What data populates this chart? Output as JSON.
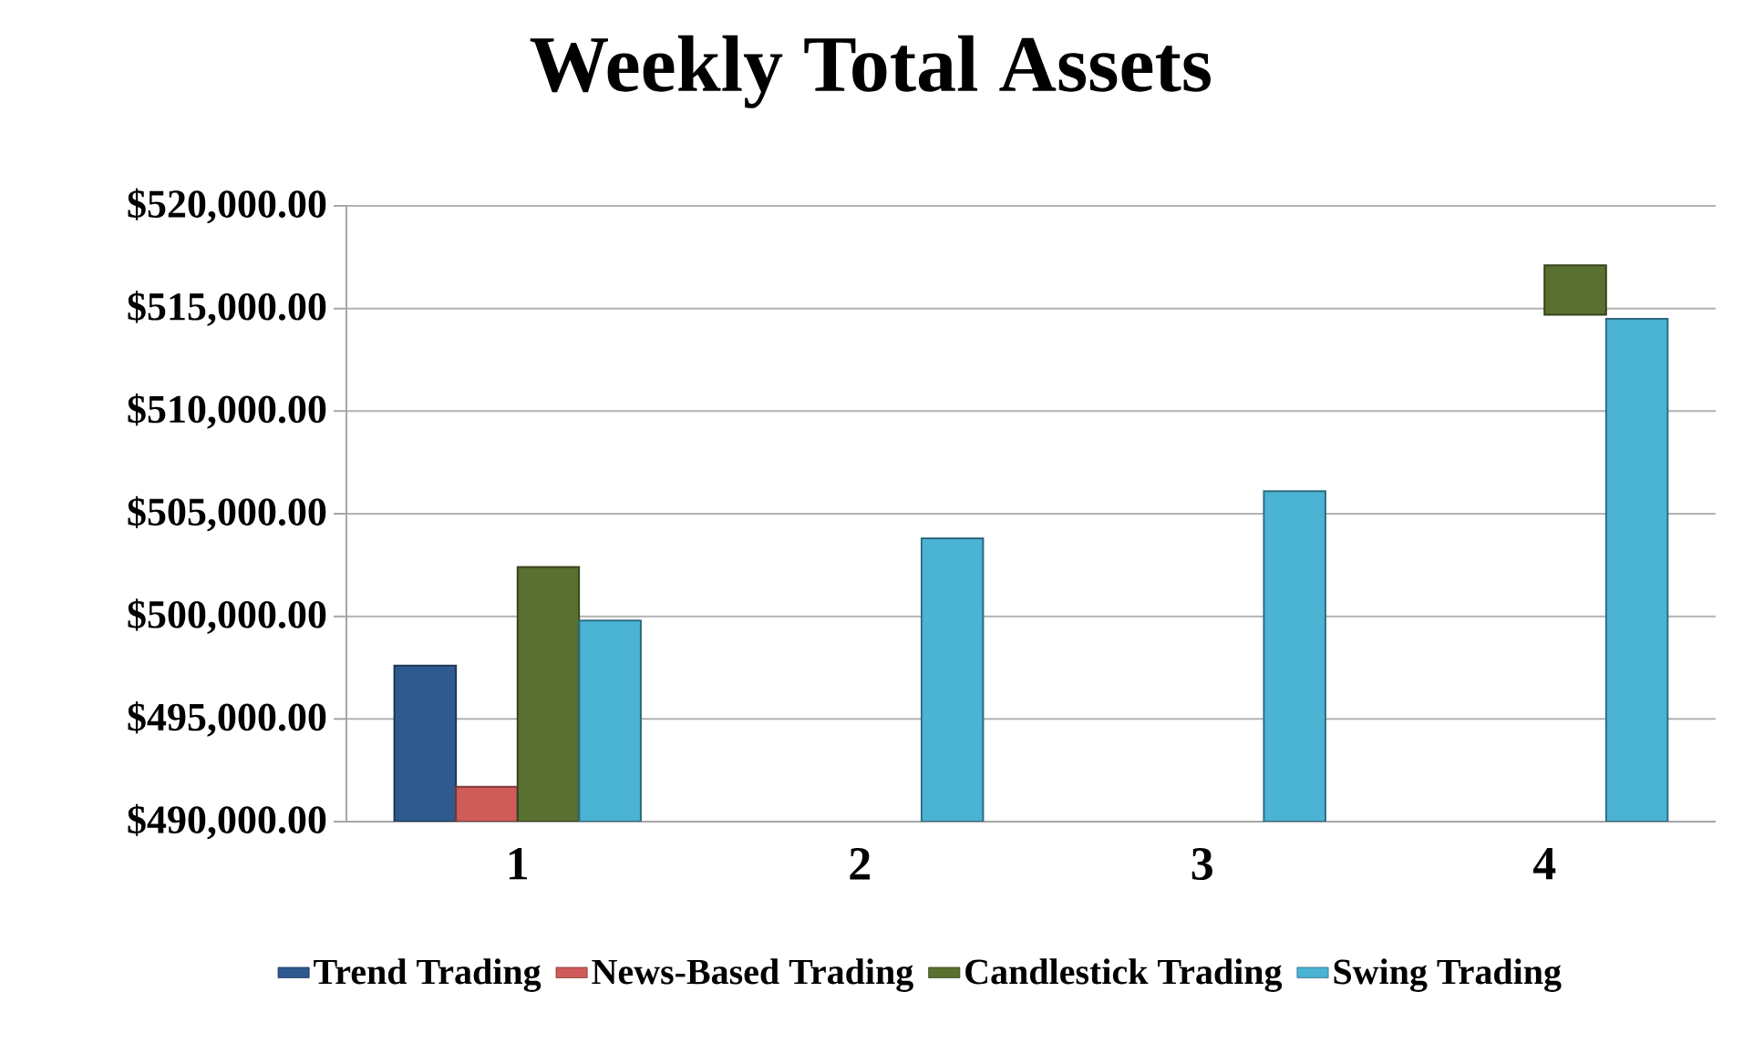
{
  "chart_data": {
    "type": "bar",
    "title": "Weekly Total Assets",
    "categories": [
      "1",
      "2",
      "3",
      "4"
    ],
    "series": [
      {
        "name": "Trend Trading",
        "color": "#2f5a8f",
        "values": [
          497600,
          null,
          null,
          null
        ]
      },
      {
        "name": "News-Based Trading",
        "color": "#d05c5a",
        "values": [
          491700,
          null,
          null,
          null
        ]
      },
      {
        "name": "Candlestick Trading",
        "color": "#5a7030",
        "values": [
          502400,
          null,
          null,
          2400
        ],
        "base": [
          null,
          null,
          null,
          514700
        ]
      },
      {
        "name": "Swing Trading",
        "color": "#4bb3d3",
        "values": [
          499800,
          503800,
          506100,
          514500
        ]
      }
    ],
    "ylim": [
      490000,
      520000
    ],
    "yticks": [
      {
        "value": 490000,
        "label": "$490,000.00"
      },
      {
        "value": 495000,
        "label": "$495,000.00"
      },
      {
        "value": 500000,
        "label": "$500,000.00"
      },
      {
        "value": 505000,
        "label": "$505,000.00"
      },
      {
        "value": 510000,
        "label": "$510,000.00"
      },
      {
        "value": 515000,
        "label": "$515,000.00"
      },
      {
        "value": 520000,
        "label": "$520,000.00"
      }
    ],
    "grid": "y",
    "legend": "bottom"
  }
}
